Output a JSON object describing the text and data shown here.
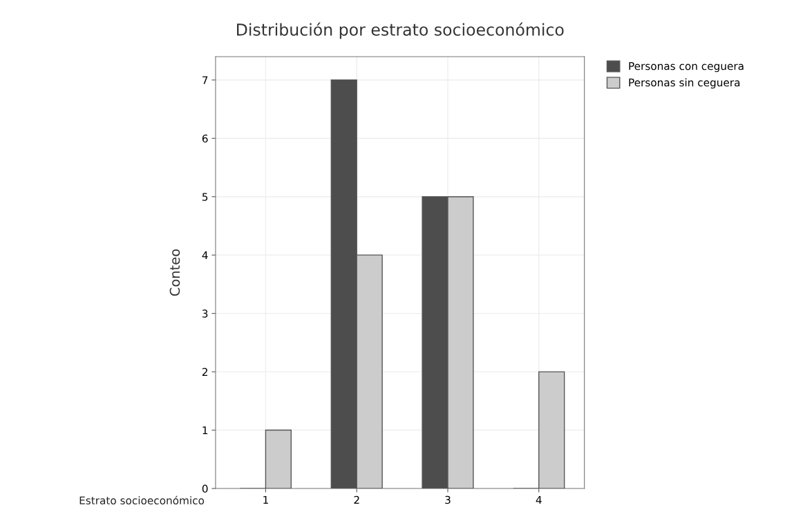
{
  "chart_data": {
    "type": "bar",
    "title": "Distribución por estrato socioeconómico",
    "xlabel": "Estrato socioeconómico",
    "ylabel": "Conteo",
    "categories": [
      "1",
      "2",
      "3",
      "4"
    ],
    "series": [
      {
        "name": "Personas con ceguera",
        "color": "#4d4d4d",
        "values": [
          0,
          7,
          5,
          0
        ]
      },
      {
        "name": "Personas sin ceguera",
        "color": "#cccccc",
        "values": [
          1,
          4,
          5,
          2
        ]
      }
    ],
    "ylim": [
      0,
      7.4
    ],
    "yticks": [
      0,
      1,
      2,
      3,
      4,
      5,
      6,
      7
    ],
    "grid": true,
    "legend": "top right"
  }
}
